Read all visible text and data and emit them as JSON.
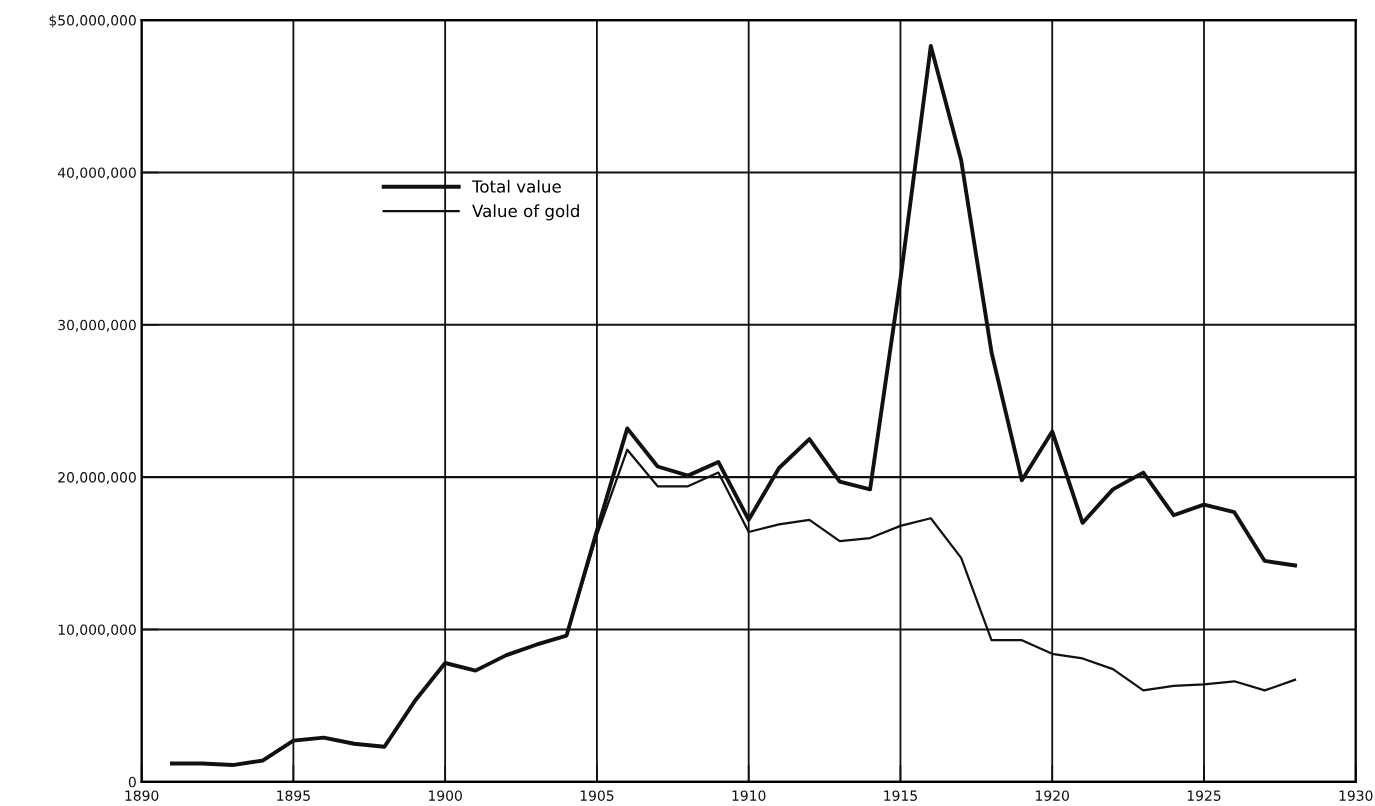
{
  "chart_data": {
    "type": "line",
    "x": [
      1891,
      1892,
      1893,
      1894,
      1895,
      1896,
      1897,
      1898,
      1899,
      1900,
      1901,
      1902,
      1903,
      1904,
      1905,
      1906,
      1907,
      1908,
      1909,
      1910,
      1911,
      1912,
      1913,
      1914,
      1915,
      1916,
      1917,
      1918,
      1919,
      1920,
      1921,
      1922,
      1923,
      1924,
      1925,
      1926,
      1927,
      1928
    ],
    "series": [
      {
        "name": "Total value",
        "color": "#111111",
        "values": [
          1200000,
          1200000,
          1100000,
          1400000,
          2700000,
          2900000,
          2500000,
          2300000,
          5300000,
          7800000,
          7300000,
          8300000,
          9000000,
          9600000,
          16500000,
          23200000,
          20700000,
          20100000,
          21000000,
          17200000,
          20600000,
          22500000,
          19700000,
          19200000,
          33000000,
          48300000,
          40800000,
          28200000,
          19800000,
          23000000,
          17000000,
          19200000,
          20300000,
          17500000,
          18200000,
          17700000,
          14500000,
          14200000
        ]
      },
      {
        "name": "Value of gold",
        "color": "#111111",
        "values": [
          1200000,
          1200000,
          1100000,
          1400000,
          2700000,
          2900000,
          2500000,
          2300000,
          5300000,
          7800000,
          7300000,
          8300000,
          9000000,
          9600000,
          16200000,
          21800000,
          19400000,
          19400000,
          20300000,
          16400000,
          16900000,
          17200000,
          15800000,
          16000000,
          16800000,
          17300000,
          14700000,
          9300000,
          9300000,
          8400000,
          8100000,
          7400000,
          6000000,
          6300000,
          6400000,
          6600000,
          6000000,
          6700000
        ]
      }
    ],
    "xlim": [
      1890,
      1930
    ],
    "xticks": [
      1890,
      1895,
      1900,
      1905,
      1910,
      1915,
      1920,
      1925,
      1930
    ],
    "ylim": [
      0,
      50000000
    ],
    "yticks": [
      {
        "value": 0,
        "label": "0"
      },
      {
        "value": 10000000,
        "label": "10,000,000"
      },
      {
        "value": 20000000,
        "label": "20,000,000"
      },
      {
        "value": 30000000,
        "label": "30,000,000"
      },
      {
        "value": 40000000,
        "label": "40,000,000"
      },
      {
        "value": 50000000,
        "label": "$50,000,000"
      }
    ],
    "grid": true,
    "legend": "top left",
    "marker": "none",
    "line_style": "solid"
  }
}
